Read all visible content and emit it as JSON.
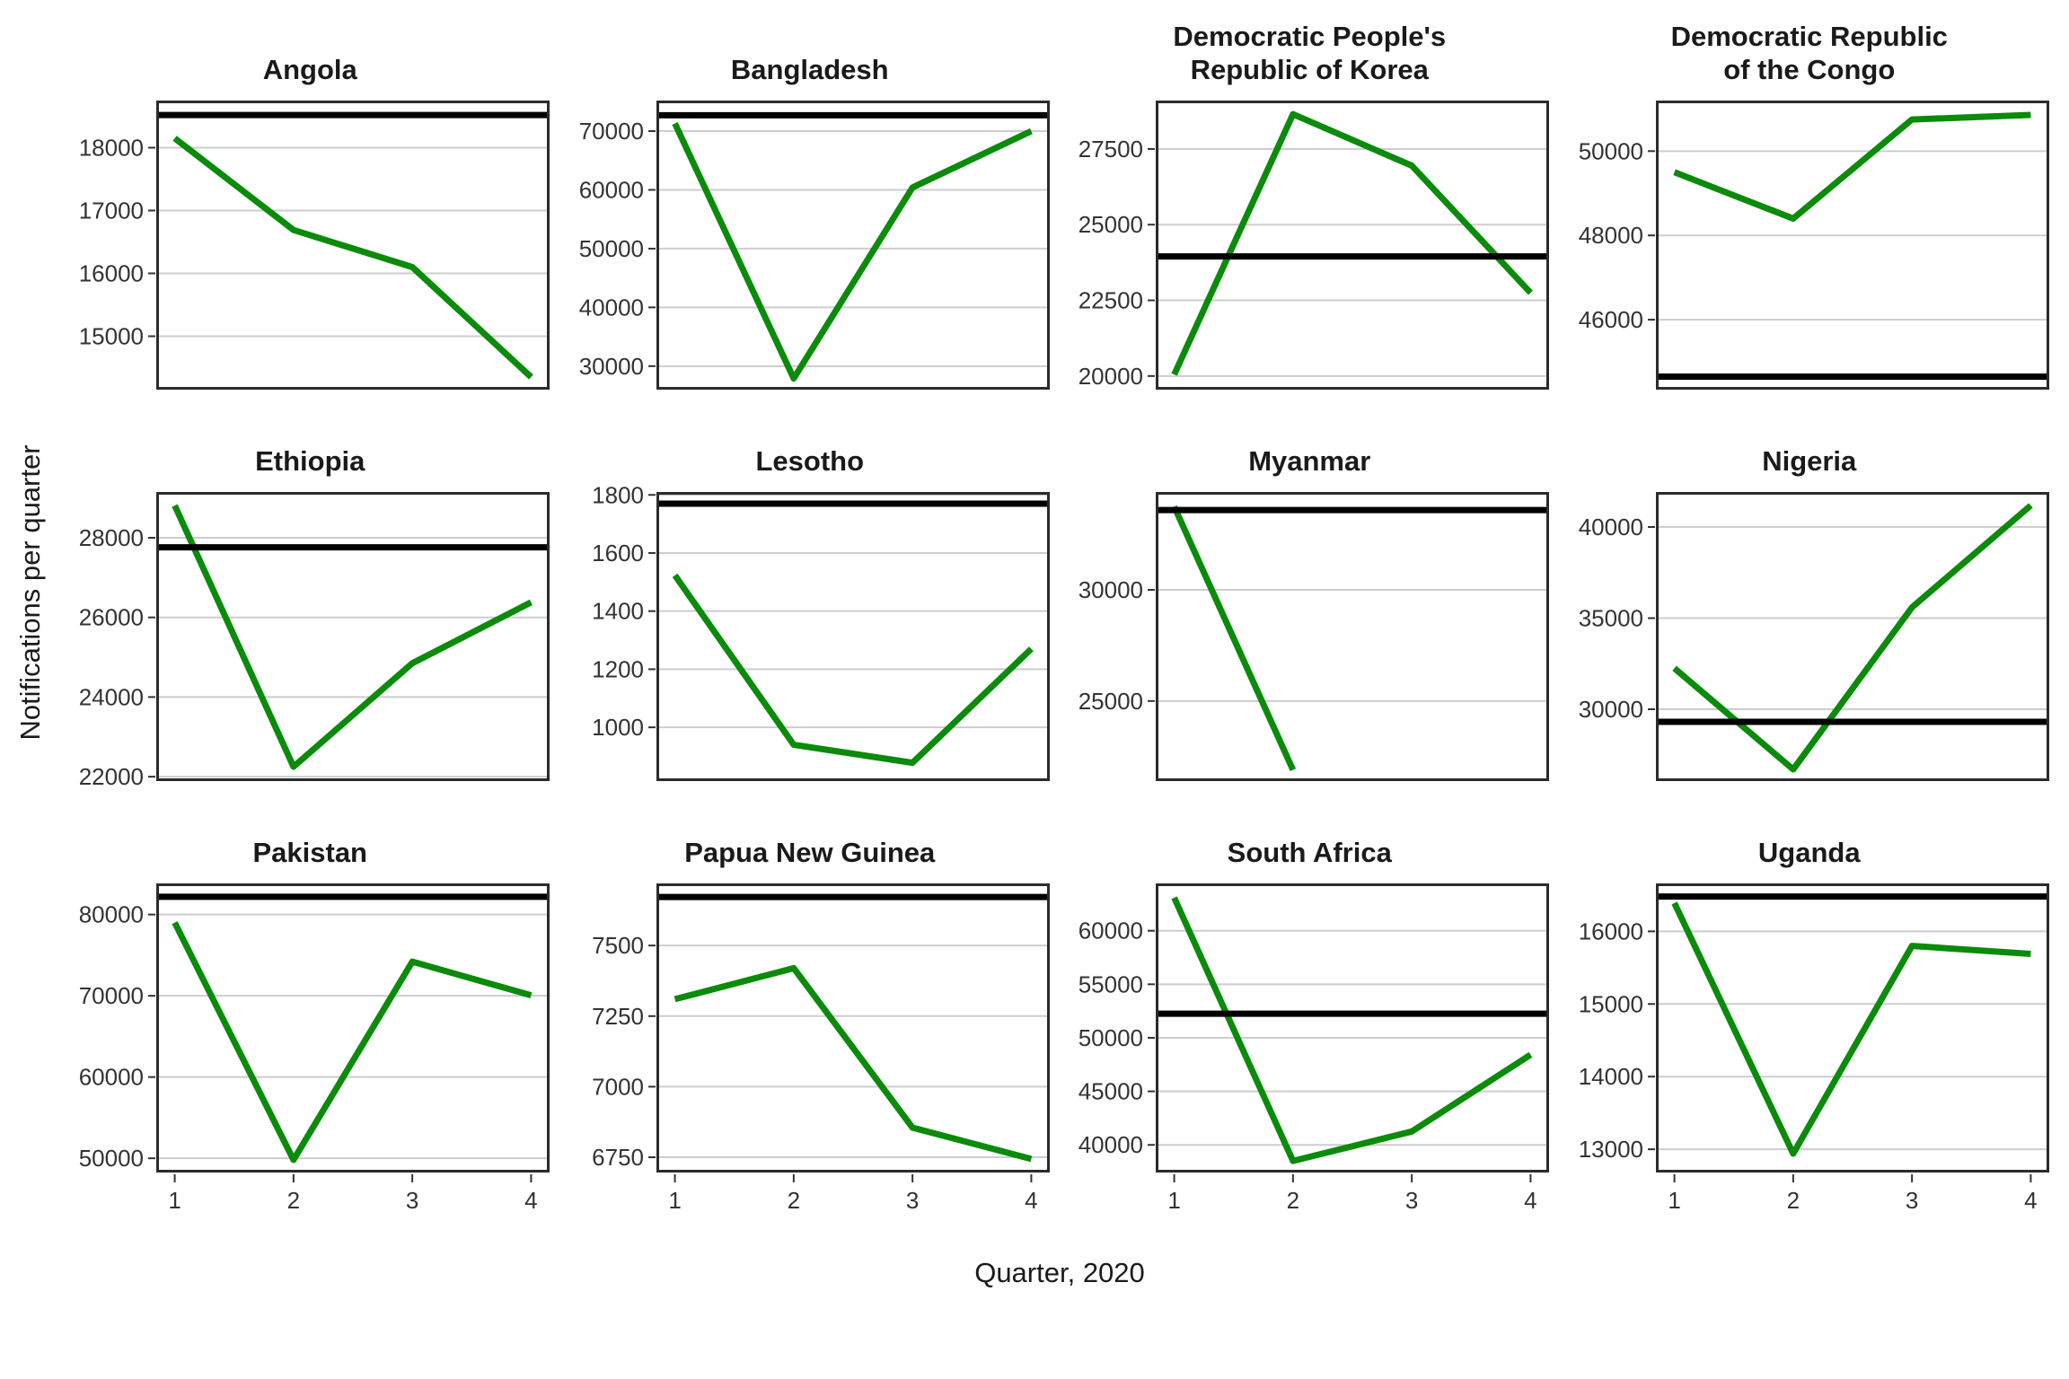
{
  "figure": {
    "x_title": "Quarter, 2020",
    "y_title": "Notifications per quarter",
    "x_tick_labels": [
      "1",
      "2",
      "3",
      "4"
    ]
  },
  "colors": {
    "data_line_green": "#0a8b0a",
    "reference_line_black": "#000000",
    "gridline_gray": "#cdcdcd",
    "panel_border": "#2b2b2b",
    "tick_text": "#333333",
    "title_text": "#1a1a1a",
    "background": "#ffffff"
  },
  "chart_data": {
    "type": "line",
    "x": [
      1,
      2,
      3,
      4
    ],
    "xlabel": "Quarter, 2020",
    "ylabel": "Notifications per quarter",
    "grid": "horizontal-only",
    "legend": "none",
    "series_description": "Each facet shows quarterly TB notifications (green line) versus a constant baseline reference (black horizontal line); y-axis scales are free per facet.",
    "facets": [
      {
        "title_lines": [
          "Angola"
        ],
        "values": [
          18150,
          16690,
          16100,
          14350
        ],
        "reference_line": 18520,
        "ylim": [
          14150,
          18750
        ],
        "yticks": [
          15000,
          16000,
          17000,
          18000
        ]
      },
      {
        "title_lines": [
          "Bangladesh"
        ],
        "values": [
          71300,
          27900,
          60400,
          70000
        ],
        "reference_line": 72700,
        "ylim": [
          26000,
          75200
        ],
        "yticks": [
          30000,
          40000,
          50000,
          60000,
          70000
        ]
      },
      {
        "title_lines": [
          "Democratic People's",
          "Republic of Korea"
        ],
        "values": [
          20050,
          28650,
          26950,
          22750
        ],
        "reference_line": 23950,
        "ylim": [
          19550,
          29100
        ],
        "yticks": [
          20000,
          22500,
          25000,
          27500
        ]
      },
      {
        "title_lines": [
          "Democratic Republic",
          "of the Congo"
        ],
        "values": [
          49500,
          48400,
          50750,
          50860
        ],
        "reference_line": 44650,
        "ylim": [
          44340,
          51200
        ],
        "yticks": [
          46000,
          48000,
          50000
        ]
      },
      {
        "title_lines": [
          "Ethiopia"
        ],
        "values": [
          28810,
          22250,
          24850,
          26380
        ],
        "reference_line": 27760,
        "ylim": [
          21890,
          29150
        ],
        "yticks": [
          22000,
          24000,
          26000,
          28000
        ]
      },
      {
        "title_lines": [
          "Lesotho"
        ],
        "values": [
          1523,
          940,
          878,
          1270
        ],
        "reference_line": 1770,
        "ylim": [
          815,
          1810
        ],
        "yticks": [
          1000,
          1200,
          1400,
          1600,
          1800
        ]
      },
      {
        "title_lines": [
          "Myanmar"
        ],
        "values": [
          33740,
          21900,
          null,
          null
        ],
        "reference_line": 33590,
        "ylim": [
          21400,
          34400
        ],
        "yticks": [
          25000,
          30000
        ]
      },
      {
        "title_lines": [
          "Nigeria"
        ],
        "values": [
          32250,
          26700,
          35590,
          41180
        ],
        "reference_line": 29310,
        "ylim": [
          26060,
          41920
        ],
        "yticks": [
          30000,
          35000,
          40000
        ]
      },
      {
        "title_lines": [
          "Pakistan"
        ],
        "values": [
          79000,
          49800,
          74200,
          70060
        ],
        "reference_line": 82190,
        "ylim": [
          48250,
          83830
        ],
        "yticks": [
          50000,
          60000,
          70000,
          80000
        ]
      },
      {
        "title_lines": [
          "Papua New Guinea"
        ],
        "values": [
          7310,
          7420,
          6855,
          6744
        ],
        "reference_line": 7672,
        "ylim": [
          6696,
          7720
        ],
        "yticks": [
          6750,
          7000,
          7250,
          7500
        ]
      },
      {
        "title_lines": [
          "South Africa"
        ],
        "values": [
          63080,
          38500,
          41250,
          48420
        ],
        "reference_line": 52250,
        "ylim": [
          37420,
          64420
        ],
        "yticks": [
          40000,
          45000,
          50000,
          55000,
          60000
        ]
      },
      {
        "title_lines": [
          "Uganda"
        ],
        "values": [
          16390,
          12940,
          15800,
          15690
        ],
        "reference_line": 16480,
        "ylim": [
          12680,
          16660
        ],
        "yticks": [
          13000,
          14000,
          15000,
          16000
        ]
      }
    ]
  }
}
